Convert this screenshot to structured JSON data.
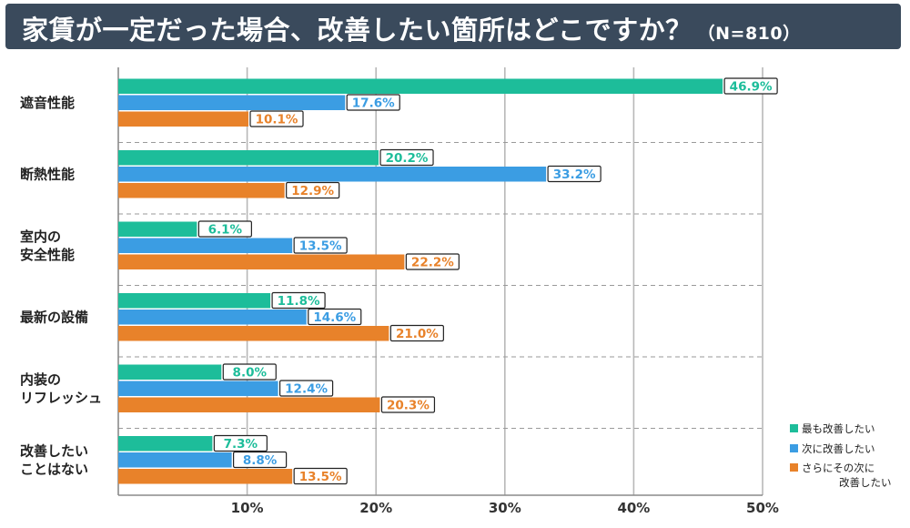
{
  "header": {
    "title": "家賃が一定だった場合、改善したい箇所はどこですか？",
    "n_label": "（N=810）"
  },
  "colors": {
    "series_1": "#1dbd9a",
    "series_2": "#3b9de3",
    "series_3": "#e8822a",
    "title_bg": "#3a4a5c"
  },
  "chart_data": {
    "type": "bar",
    "orientation": "horizontal",
    "title": "家賃が一定だった場合、改善したい箇所はどこですか？（N=810）",
    "categories": [
      [
        "遮音性能"
      ],
      [
        "断熱性能"
      ],
      [
        "室内の",
        "安全性能"
      ],
      [
        "最新の設備"
      ],
      [
        "内装の",
        "リフレッシュ"
      ],
      [
        "改善したい",
        "ことはない"
      ]
    ],
    "series": [
      {
        "name": "最も改善したい",
        "values": [
          46.9,
          20.2,
          6.1,
          11.8,
          8.0,
          7.3
        ]
      },
      {
        "name": "次に改善したい",
        "values": [
          17.6,
          33.2,
          13.5,
          14.6,
          12.4,
          8.8
        ]
      },
      {
        "name": "さらにその次に改善したい",
        "values": [
          10.1,
          12.9,
          22.2,
          21.0,
          20.3,
          13.5
        ]
      }
    ],
    "value_labels": [
      [
        "46.9%",
        "20.2%",
        "6.1%",
        "11.8%",
        "8.0%",
        "7.3%"
      ],
      [
        "17.6%",
        "33.2%",
        "13.5%",
        "14.6%",
        "12.4%",
        "8.8%"
      ],
      [
        "10.1%",
        "12.9%",
        "22.2%",
        "21.0%",
        "20.3%",
        "13.5%"
      ]
    ],
    "legend_labels": [
      [
        "最も改善したい"
      ],
      [
        "次に改善したい"
      ],
      [
        "さらにその次に",
        "改善したい"
      ]
    ],
    "xlim": [
      0,
      50
    ],
    "xticks": [
      10,
      20,
      30,
      40,
      50
    ],
    "xtick_labels": [
      "10%",
      "20%",
      "30%",
      "40%",
      "50%"
    ],
    "grid": true,
    "legend_position": "bottom-right"
  }
}
